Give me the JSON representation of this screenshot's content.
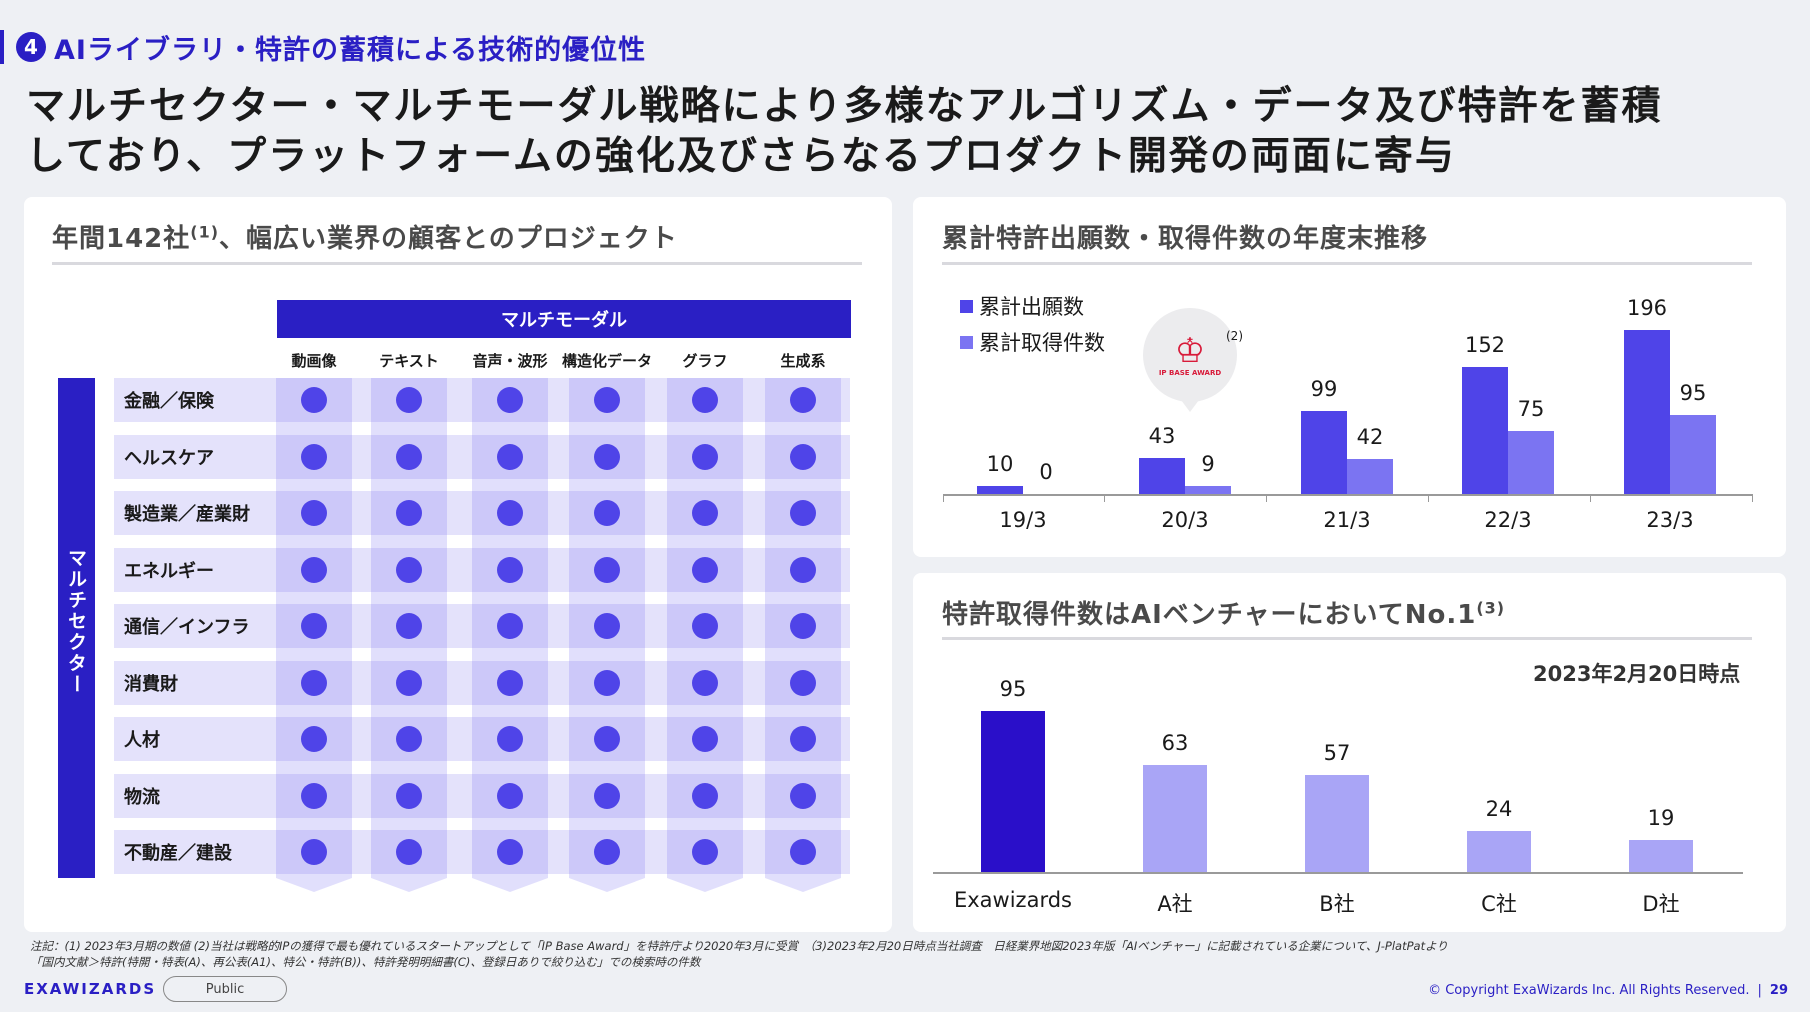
{
  "section": {
    "number": "4",
    "title": "AIライブラリ・特許の蓄積による技術的優位性"
  },
  "headline": {
    "line1": "マルチセクター・マルチモーダル戦略により多様なアルゴリズム・データ及び特許を蓄積",
    "line2": "しており、プラットフォームの強化及びさらなるプロダクト開発の両面に寄与"
  },
  "left_card": {
    "title": "年間142社",
    "title_sup": "(1)",
    "title_rest": "、幅広い業界の顧客とのプロジェクト",
    "modal_header": "マルチモーダル",
    "sector_header": "マルチセクター",
    "columns": [
      "動画像",
      "テキスト",
      "音声・波形",
      "構造化データ",
      "グラフ",
      "生成系"
    ],
    "rows": [
      "金融／保険",
      "ヘルスケア",
      "製造業／産業財",
      "エネルギー",
      "通信／インフラ",
      "消費財",
      "人材",
      "物流",
      "不動産／建設"
    ]
  },
  "patent_chart": {
    "title": "累計特許出願数・取得件数の年度末推移",
    "award_label": "IP BASE AWARD",
    "award_note": "(2)",
    "colors": {
      "applications": "#4f44e8",
      "granted": "#7b74f2"
    },
    "chart_data": {
      "type": "bar",
      "categories": [
        "19/3",
        "20/3",
        "21/3",
        "22/3",
        "23/3"
      ],
      "series": [
        {
          "name": "累計出願数",
          "values": [
            10,
            43,
            99,
            152,
            196
          ]
        },
        {
          "name": "累計取得件数",
          "values": [
            0,
            9,
            42,
            75,
            95
          ]
        }
      ],
      "ylim": [
        0,
        200
      ],
      "legend": "top-left"
    }
  },
  "ranking_chart": {
    "title": "特許取得件数はAIベンチャーにおいてNo.1",
    "title_sup": "(3)",
    "as_of": "2023年2月20日時点",
    "colors": {
      "highlight": "#2a0fc9",
      "others": "#a9a5f6"
    },
    "chart_data": {
      "type": "bar",
      "categories": [
        "Exawizards",
        "A社",
        "B社",
        "C社",
        "D社"
      ],
      "values": [
        95,
        63,
        57,
        24,
        19
      ],
      "ylim": [
        0,
        100
      ]
    }
  },
  "footnotes": {
    "line1": "注記：(1) 2023年3月期の数値 (2)当社は戦略的IPの獲得で最も優れているスタートアップとして「IP Base Award」を特許庁より2020年3月に受賞　（3)2023年2月20日時点当社調査　日経業界地図2023年版「AIベンチャー」に記載されている企業について、J-PlatPatより",
    "line2": "「国内文献＞特許(特開・特表(A)、再公表(A1)、特公・特許(B))、特許発明明細書(C)、登録日ありで絞り込む」での検索時の件数"
  },
  "footer": {
    "logo": "EXAWIZARDS",
    "badge": "Public",
    "copyright": "© Copyright ExaWizards Inc. All Rights Reserved.",
    "page": "29"
  }
}
